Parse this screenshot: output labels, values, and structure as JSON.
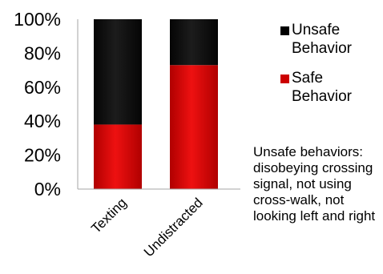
{
  "chart_data": {
    "type": "bar",
    "stacked": true,
    "percent": true,
    "categories": [
      "Texting",
      "Undistracted"
    ],
    "series": [
      {
        "name": "Safe Behavior",
        "values": [
          38,
          73
        ],
        "color": "#cc0000"
      },
      {
        "name": "Unsafe Behavior",
        "values": [
          62,
          27
        ],
        "color": "#000000"
      }
    ],
    "ylim": [
      0,
      100
    ],
    "yticks": [
      "0%",
      "20%",
      "40%",
      "60%",
      "80%",
      "100%"
    ],
    "title": "",
    "xlabel": "",
    "ylabel": "",
    "grid": false,
    "legend": {
      "placement": "right",
      "entries": [
        {
          "label": "Unsafe Behavior",
          "color": "#000000"
        },
        {
          "label": "Safe Behavior",
          "color": "#cc0000"
        }
      ]
    },
    "annotation": "Unsafe behaviors: disobeying crossing signal, not using cross-walk, not looking left and right"
  }
}
